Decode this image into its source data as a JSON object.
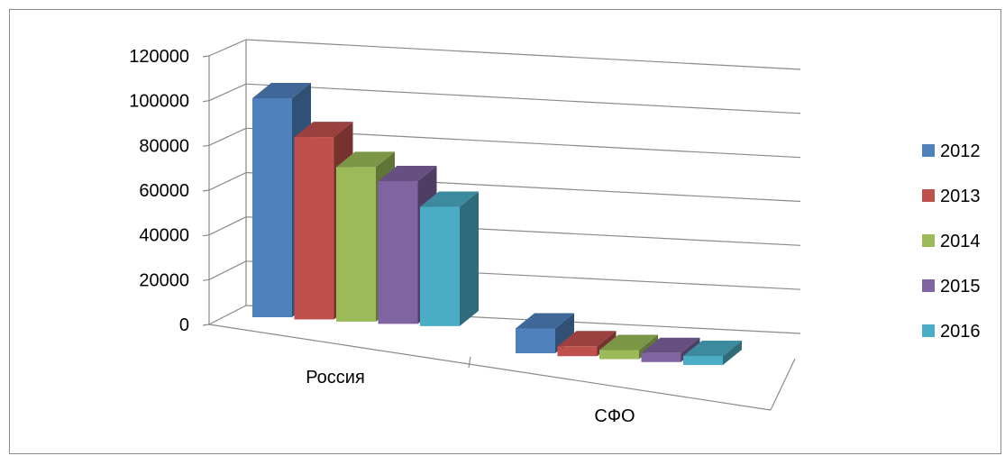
{
  "chart_data": {
    "type": "bar",
    "categories": [
      "Россия",
      "СФО"
    ],
    "series": [
      {
        "name": "2012",
        "values": [
          108000,
          10000
        ],
        "color": "#4f81bd"
      },
      {
        "name": "2013",
        "values": [
          88000,
          4000
        ],
        "color": "#c0504d"
      },
      {
        "name": "2014",
        "values": [
          73000,
          3000
        ],
        "color": "#9bbb59"
      },
      {
        "name": "2015",
        "values": [
          66000,
          2000
        ],
        "color": "#8064a2"
      },
      {
        "name": "2016",
        "values": [
          54000,
          1000
        ],
        "color": "#4bacc6"
      }
    ],
    "y_ticks": [
      "0",
      "20000",
      "40000",
      "60000",
      "80000",
      "100000",
      "120000"
    ],
    "ylim": [
      0,
      120000
    ],
    "grid": true,
    "legend_position": "right",
    "title": "",
    "xlabel": "",
    "ylabel": ""
  }
}
